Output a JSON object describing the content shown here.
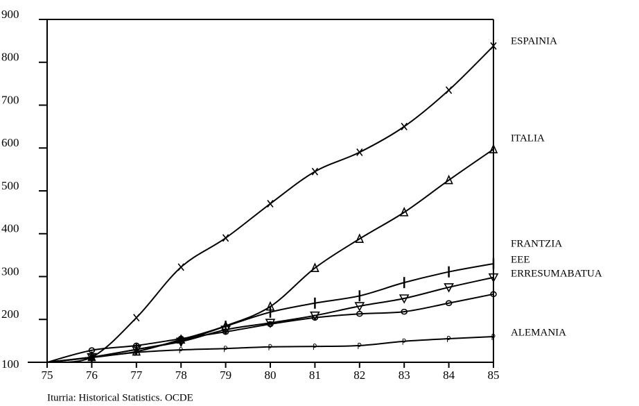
{
  "chart_data": {
    "type": "line",
    "x": [
      75,
      76,
      77,
      78,
      79,
      80,
      81,
      82,
      83,
      84,
      85
    ],
    "xlim": [
      75,
      85
    ],
    "xticks": [
      75,
      76,
      77,
      78,
      79,
      80,
      81,
      82,
      83,
      84,
      85
    ],
    "ylim": [
      100,
      900
    ],
    "yticks": [
      100,
      200,
      300,
      400,
      500,
      600,
      700,
      800,
      900
    ],
    "series": [
      {
        "name": "ESPAINIA",
        "color": "#000000",
        "marker": "x",
        "values": [
          100,
          112,
          204,
          322,
          390,
          470,
          545,
          590,
          650,
          735,
          838
        ]
      },
      {
        "name": "ITALIA",
        "color": "#000000",
        "marker": "triangle",
        "values": [
          100,
          112,
          125,
          153,
          185,
          230,
          320,
          388,
          450,
          525,
          597
        ]
      },
      {
        "name": "FRANTZIA",
        "color": "#000000",
        "marker": "bar",
        "values": [
          100,
          112,
          130,
          150,
          184,
          217,
          238,
          255,
          286,
          311,
          330
        ]
      },
      {
        "name": "EEE",
        "color": "#000000",
        "marker": "triangle-down",
        "values": [
          100,
          112,
          130,
          148,
          176,
          192,
          209,
          231,
          249,
          275,
          298
        ]
      },
      {
        "name": "ERRESUMABATUA",
        "color": "#000000",
        "marker": "circle",
        "values": [
          100,
          128,
          139,
          155,
          171,
          189,
          204,
          213,
          218,
          238,
          259
        ]
      },
      {
        "name": "ALEMANIA",
        "color": "#000000",
        "marker": "p",
        "values": [
          100,
          111,
          123,
          129,
          132,
          136,
          137,
          139,
          149,
          155,
          160
        ]
      }
    ],
    "source": "Iturria: Historical Statistics. OCDE"
  }
}
